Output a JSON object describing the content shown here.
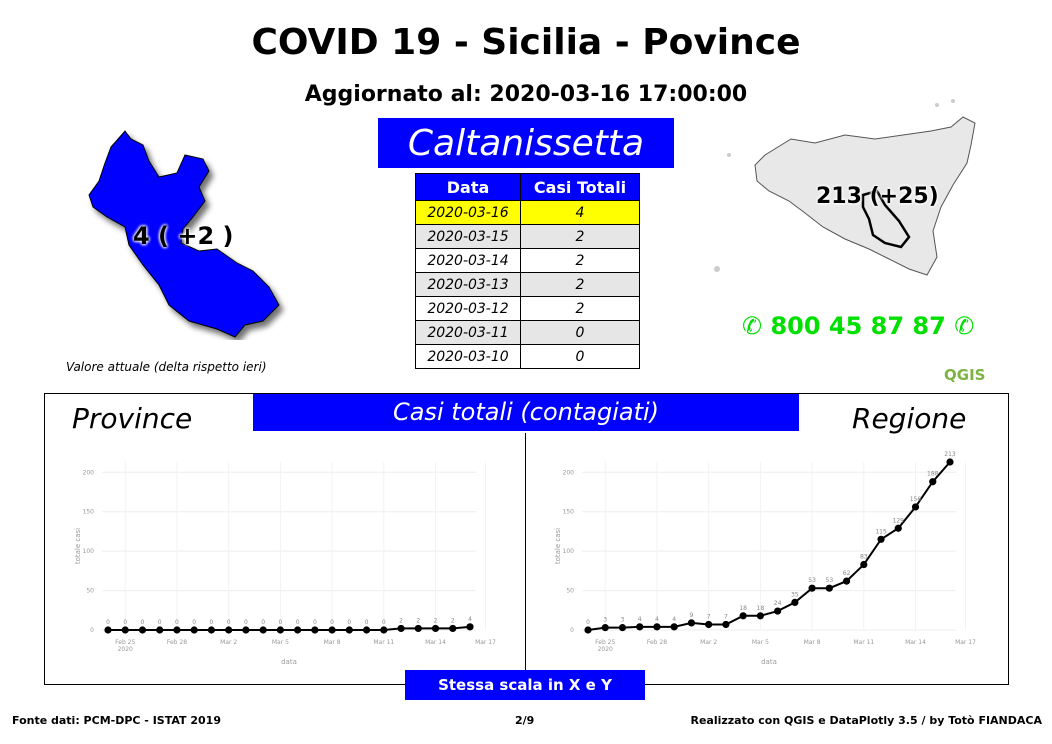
{
  "header": {
    "title": "COVID 19 - Sicilia - Povince",
    "updated": "Aggiornato al: 2020-03-16 17:00:00"
  },
  "province_name": "Caltanissetta",
  "table": {
    "headers": [
      "Data",
      "Casi Totali"
    ],
    "rows": [
      {
        "date": "2020-03-16",
        "value": "4"
      },
      {
        "date": "2020-03-15",
        "value": "2"
      },
      {
        "date": "2020-03-14",
        "value": "2"
      },
      {
        "date": "2020-03-13",
        "value": "2"
      },
      {
        "date": "2020-03-12",
        "value": "2"
      },
      {
        "date": "2020-03-11",
        "value": "0"
      },
      {
        "date": "2020-03-10",
        "value": "0"
      }
    ]
  },
  "map_left": {
    "label": "4 ( +2 )",
    "note": "Valore attuale (delta rispetto ieri)",
    "fill_color": "#0000ff"
  },
  "map_right": {
    "label": "213 (+25)",
    "fill_color": "#e8e8e8"
  },
  "phone": {
    "number": "800 45 87 87",
    "icon": "phone-icon",
    "color": "#00e000"
  },
  "logo": "QGIS",
  "section": {
    "banner": "Casi totali (contagiati)",
    "left_label": "Province",
    "right_label": "Regione",
    "scale_note": "Stessa scala in X e Y"
  },
  "footer": {
    "source": "Fonte dati: PCM-DPC - ISTAT 2019",
    "page": "2/9",
    "credit": "Realizzato con QGIS e DataPlotly 3.5 / by Totò FIANDACA"
  },
  "chart_data": [
    {
      "type": "line",
      "name": "Province",
      "xlabel": "data",
      "ylabel": "totale casi",
      "ylim": [
        0,
        213
      ],
      "yticks": [
        0,
        50,
        100,
        150,
        200
      ],
      "xticks": [
        "Feb 25\n2020",
        "Feb 28",
        "Mar 2",
        "Mar 5",
        "Mar 8",
        "Mar 11",
        "Mar 14",
        "Mar 17"
      ],
      "x": [
        "2020-02-24",
        "2020-02-25",
        "2020-02-26",
        "2020-02-27",
        "2020-02-28",
        "2020-02-29",
        "2020-03-01",
        "2020-03-02",
        "2020-03-03",
        "2020-03-04",
        "2020-03-05",
        "2020-03-06",
        "2020-03-07",
        "2020-03-08",
        "2020-03-09",
        "2020-03-10",
        "2020-03-11",
        "2020-03-12",
        "2020-03-13",
        "2020-03-14",
        "2020-03-15",
        "2020-03-16"
      ],
      "values": [
        0,
        0,
        0,
        0,
        0,
        0,
        0,
        0,
        0,
        0,
        0,
        0,
        0,
        0,
        0,
        0,
        0,
        2,
        2,
        2,
        2,
        4
      ],
      "color": "#000000",
      "grid": true
    },
    {
      "type": "line",
      "name": "Regione",
      "xlabel": "data",
      "ylabel": "totale casi",
      "ylim": [
        0,
        213
      ],
      "yticks": [
        0,
        50,
        100,
        150,
        200
      ],
      "xticks": [
        "Feb 25\n2020",
        "Feb 28",
        "Mar 2",
        "Mar 5",
        "Mar 8",
        "Mar 11",
        "Mar 14",
        "Mar 17"
      ],
      "x": [
        "2020-02-24",
        "2020-02-25",
        "2020-02-26",
        "2020-02-27",
        "2020-02-28",
        "2020-02-29",
        "2020-03-01",
        "2020-03-02",
        "2020-03-03",
        "2020-03-04",
        "2020-03-05",
        "2020-03-06",
        "2020-03-07",
        "2020-03-08",
        "2020-03-09",
        "2020-03-10",
        "2020-03-11",
        "2020-03-12",
        "2020-03-13",
        "2020-03-14",
        "2020-03-15",
        "2020-03-16"
      ],
      "values": [
        0,
        3,
        3,
        4,
        4,
        4,
        9,
        7,
        7,
        18,
        18,
        24,
        35,
        53,
        53,
        62,
        83,
        115,
        129,
        156,
        188,
        213
      ],
      "color": "#000000",
      "grid": true
    }
  ]
}
